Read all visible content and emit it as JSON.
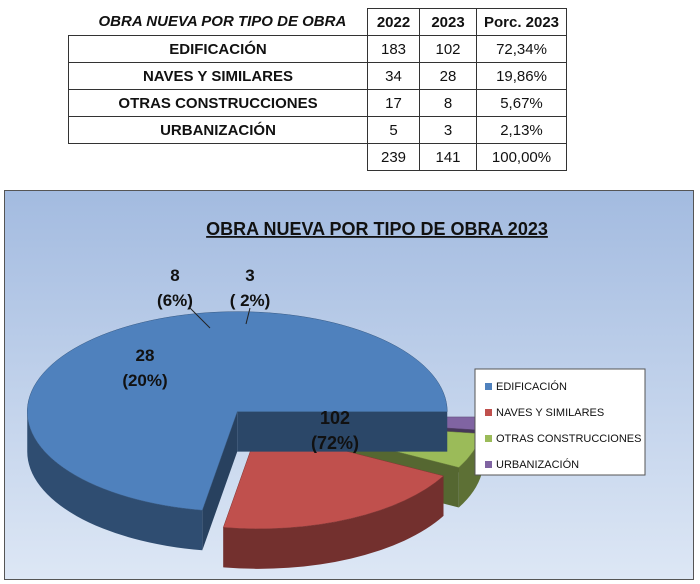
{
  "table": {
    "title": "OBRA NUEVA POR TIPO DE OBRA",
    "headers": [
      "2022",
      "2023",
      "Porc. 2023"
    ],
    "rows": [
      {
        "label": "EDIFICACIÓN",
        "v2022": "183",
        "v2023": "102",
        "pct": "72,34%"
      },
      {
        "label": "NAVES Y SIMILARES",
        "v2022": "34",
        "v2023": "28",
        "pct": "19,86%"
      },
      {
        "label": "OTRAS CONSTRUCCIONES",
        "v2022": "17",
        "v2023": "8",
        "pct": "5,67%"
      },
      {
        "label": "URBANIZACIÓN",
        "v2022": "5",
        "v2023": "3",
        "pct": "2,13%"
      }
    ],
    "totals": {
      "v2022": "239",
      "v2023": "141",
      "pct": "100,00%"
    }
  },
  "chart_data": {
    "type": "pie",
    "title": "OBRA NUEVA POR TIPO DE OBRA 2023",
    "categories": [
      "EDIFICACIÓN",
      "NAVES Y SIMILARES",
      "OTRAS CONSTRUCCIONES",
      "URBANIZACIÓN"
    ],
    "values": [
      102,
      28,
      8,
      3
    ],
    "value_labels": [
      "102",
      "28",
      "8",
      "3"
    ],
    "percent_labels": [
      "(72%)",
      "(20%)",
      "(6%)",
      "( 2%)"
    ],
    "colors": [
      "#4f81bd",
      "#c0504d",
      "#9bbb59",
      "#8064a2"
    ],
    "style": "3d-exploded",
    "legend": "right",
    "background": [
      "#a3bbe0",
      "#dde7f5"
    ]
  }
}
